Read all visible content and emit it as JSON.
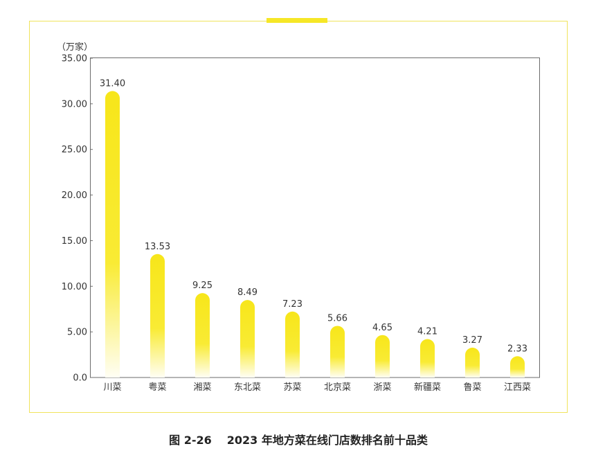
{
  "chart_data": {
    "type": "bar",
    "title": "2023 年地方菜在线门店数排名前十品类",
    "xlabel": "",
    "ylabel": "（万家）",
    "categories": [
      "川菜",
      "粤菜",
      "湘菜",
      "东北菜",
      "苏菜",
      "北京菜",
      "浙菜",
      "新疆菜",
      "鲁菜",
      "江西菜"
    ],
    "values": [
      31.4,
      13.53,
      9.25,
      8.49,
      7.23,
      5.66,
      4.65,
      4.21,
      3.27,
      2.33
    ],
    "value_labels": [
      "31.40",
      "13.53",
      "9.25",
      "8.49",
      "7.23",
      "5.66",
      "4.65",
      "4.21",
      "3.27",
      "2.33"
    ],
    "ylim": [
      0,
      35
    ],
    "y_ticks": [
      0,
      5,
      10,
      15,
      20,
      25,
      30,
      35
    ],
    "y_tick_labels": [
      "0.0",
      "5.00",
      "10.00",
      "15.00",
      "20.00",
      "25.00",
      "30.00",
      "35.00"
    ],
    "grid": false,
    "legend": "none"
  },
  "caption": {
    "figure_number": "图 2-26"
  },
  "colors": {
    "bar_top": "#f7e61a",
    "bar_mid": "#f9eb34",
    "bar_bottom": "#fffef4",
    "frame": "#f0e35c",
    "frame_tab": "#f6e727",
    "plot_border": "#6b6b6b",
    "text": "#333333"
  }
}
